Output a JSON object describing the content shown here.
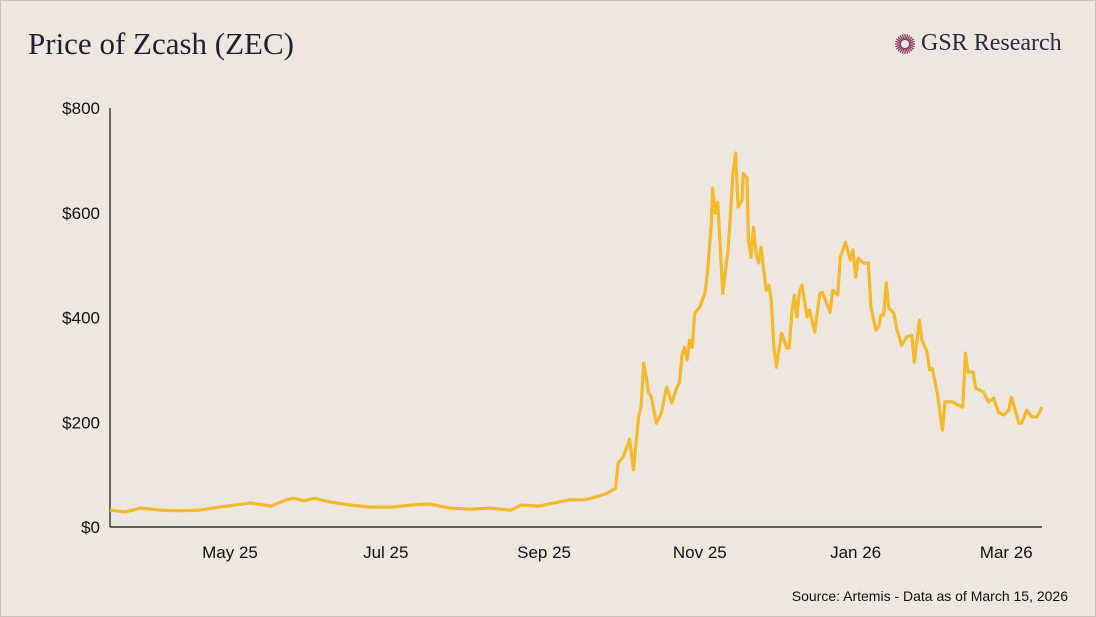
{
  "header": {
    "title": "Price of Zcash (ZEC)",
    "brand": "GSR Research"
  },
  "footer": {
    "source": "Source: Artemis - Data as of March 15, 2026"
  },
  "chart_data": {
    "type": "line",
    "title": "Price of Zcash (ZEC)",
    "xlabel": "",
    "ylabel": "",
    "x_unit": "days since Mar 15, 2025",
    "xlim": [
      0,
      365
    ],
    "ylim": [
      0,
      800
    ],
    "color": "#f4b92c",
    "y_ticks": [
      {
        "value": 0,
        "label": "$0"
      },
      {
        "value": 200,
        "label": "$200"
      },
      {
        "value": 400,
        "label": "$400"
      },
      {
        "value": 600,
        "label": "$600"
      },
      {
        "value": 800,
        "label": "$800"
      }
    ],
    "x_ticks": [
      {
        "value": 47,
        "label": "May 25"
      },
      {
        "value": 108,
        "label": "Jul 25"
      },
      {
        "value": 170,
        "label": "Sep 25"
      },
      {
        "value": 231,
        "label": "Nov 25"
      },
      {
        "value": 292,
        "label": "Jan 26"
      },
      {
        "value": 351,
        "label": "Mar 26"
      }
    ],
    "series": [
      {
        "name": "ZEC price (USD)",
        "points": [
          [
            0,
            32
          ],
          [
            6,
            29
          ],
          [
            12,
            36
          ],
          [
            20,
            32
          ],
          [
            27,
            31
          ],
          [
            35,
            32
          ],
          [
            43,
            38
          ],
          [
            55,
            46
          ],
          [
            63,
            40
          ],
          [
            69,
            52
          ],
          [
            72,
            55
          ],
          [
            76,
            50
          ],
          [
            80,
            55
          ],
          [
            86,
            48
          ],
          [
            94,
            42
          ],
          [
            102,
            38
          ],
          [
            110,
            38
          ],
          [
            118,
            42
          ],
          [
            125,
            44
          ],
          [
            133,
            36
          ],
          [
            141,
            34
          ],
          [
            149,
            36
          ],
          [
            157,
            32
          ],
          [
            161,
            42
          ],
          [
            168,
            40
          ],
          [
            174,
            46
          ],
          [
            180,
            52
          ],
          [
            186,
            52
          ],
          [
            190,
            57
          ],
          [
            194,
            63
          ],
          [
            197,
            71
          ],
          [
            198,
            74
          ],
          [
            199,
            122
          ],
          [
            201,
            134
          ],
          [
            203,
            160
          ],
          [
            203.5,
            168
          ],
          [
            205,
            109
          ],
          [
            207,
            210
          ],
          [
            208,
            229
          ],
          [
            209,
            313
          ],
          [
            211,
            256
          ],
          [
            212,
            248
          ],
          [
            214,
            198
          ],
          [
            216,
            218
          ],
          [
            218,
            267
          ],
          [
            220,
            237
          ],
          [
            222,
            267
          ],
          [
            223,
            275
          ],
          [
            224,
            328
          ],
          [
            225,
            343
          ],
          [
            226,
            319
          ],
          [
            227,
            357
          ],
          [
            228,
            343
          ],
          [
            229,
            408
          ],
          [
            231,
            420
          ],
          [
            233,
            446
          ],
          [
            234,
            485
          ],
          [
            235.5,
            580
          ],
          [
            236,
            647
          ],
          [
            237,
            599
          ],
          [
            238,
            620
          ],
          [
            240,
            446
          ],
          [
            241.5,
            509
          ],
          [
            242,
            523
          ],
          [
            243.5,
            637
          ],
          [
            244,
            677
          ],
          [
            245,
            714
          ],
          [
            246,
            611
          ],
          [
            247.5,
            624
          ],
          [
            248,
            675
          ],
          [
            249.5,
            666
          ],
          [
            250,
            548
          ],
          [
            251,
            515
          ],
          [
            252,
            572
          ],
          [
            253,
            523
          ],
          [
            254,
            504
          ],
          [
            255,
            534
          ],
          [
            257,
            452
          ],
          [
            258,
            462
          ],
          [
            259,
            433
          ],
          [
            260,
            343
          ],
          [
            261,
            305
          ],
          [
            263,
            370
          ],
          [
            265,
            342
          ],
          [
            266,
            342
          ],
          [
            267,
            408
          ],
          [
            268,
            443
          ],
          [
            269,
            401
          ],
          [
            270,
            448
          ],
          [
            271,
            462
          ],
          [
            273,
            401
          ],
          [
            274,
            414
          ],
          [
            276,
            372
          ],
          [
            278,
            446
          ],
          [
            279,
            448
          ],
          [
            282,
            410
          ],
          [
            283,
            452
          ],
          [
            285,
            443
          ],
          [
            286,
            515
          ],
          [
            288,
            544
          ],
          [
            290,
            509
          ],
          [
            291,
            529
          ],
          [
            292,
            477
          ],
          [
            293,
            513
          ],
          [
            295,
            504
          ],
          [
            297,
            504
          ],
          [
            298,
            420
          ],
          [
            300,
            376
          ],
          [
            301,
            382
          ],
          [
            302,
            405
          ],
          [
            303,
            405
          ],
          [
            304,
            466
          ],
          [
            305,
            418
          ],
          [
            307,
            408
          ],
          [
            308,
            380
          ],
          [
            310,
            347
          ],
          [
            312,
            363
          ],
          [
            314,
            366
          ],
          [
            315,
            315
          ],
          [
            317,
            395
          ],
          [
            318,
            357
          ],
          [
            320,
            334
          ],
          [
            321,
            300
          ],
          [
            322,
            303
          ],
          [
            324,
            256
          ],
          [
            326,
            185
          ],
          [
            327,
            239
          ],
          [
            330,
            239
          ],
          [
            332,
            233
          ],
          [
            334,
            229
          ],
          [
            335,
            332
          ],
          [
            336,
            296
          ],
          [
            338,
            296
          ],
          [
            339,
            265
          ],
          [
            342,
            258
          ],
          [
            344,
            239
          ],
          [
            346,
            246
          ],
          [
            348,
            219
          ],
          [
            350,
            214
          ],
          [
            352,
            223
          ],
          [
            353,
            248
          ],
          [
            356,
            198
          ],
          [
            357,
            198
          ],
          [
            359,
            223
          ],
          [
            361,
            210
          ],
          [
            363,
            210
          ],
          [
            365,
            229
          ]
        ]
      }
    ],
    "grid": false,
    "legend": "none"
  }
}
